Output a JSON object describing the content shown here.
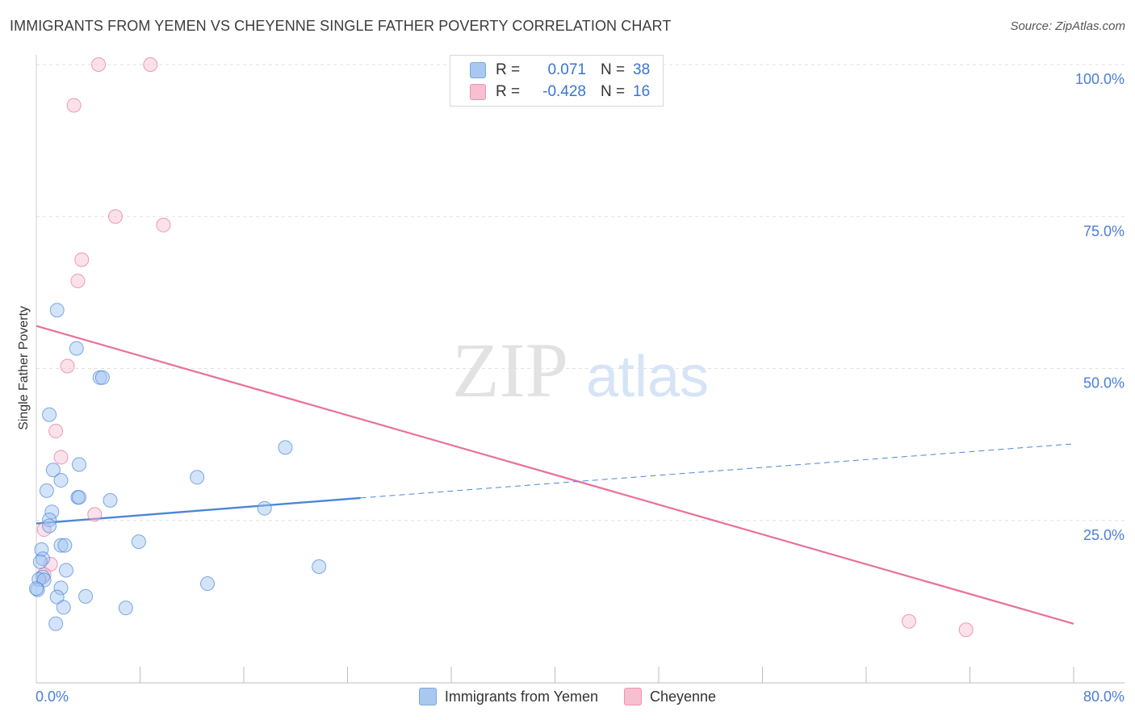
{
  "title": "IMMIGRANTS FROM YEMEN VS CHEYENNE SINGLE FATHER POVERTY CORRELATION CHART",
  "source": "Source: ZipAtlas.com",
  "watermark": {
    "zip": "ZIP",
    "atlas": "atlas"
  },
  "legend": {
    "rows": [
      {
        "r_label": "R =",
        "r_value": "0.071",
        "n_label": "N =",
        "n_value": "38",
        "color": "#a9c8ef",
        "border": "#7aa7e3"
      },
      {
        "r_label": "R =",
        "r_value": "-0.428",
        "n_label": "N =",
        "n_value": "16",
        "color": "#f7bfd0",
        "border": "#ee93b0"
      }
    ]
  },
  "bottom_legend": [
    {
      "label": "Immigrants from Yemen",
      "color": "#a9c8ef",
      "border": "#7aa7e3"
    },
    {
      "label": "Cheyenne",
      "color": "#f7bfd0",
      "border": "#ee93b0"
    }
  ],
  "chart_data": {
    "type": "scatter",
    "title": "IMMIGRANTS FROM YEMEN VS CHEYENNE SINGLE FATHER POVERTY CORRELATION CHART",
    "xlabel": "",
    "ylabel": "Single Father Poverty",
    "xlim": [
      0,
      80
    ],
    "ylim": [
      0,
      100
    ],
    "x_tick_labels": [
      "0.0%",
      "80.0%"
    ],
    "y_ticks": [
      25,
      50,
      75,
      100
    ],
    "y_tick_labels": [
      "25.0%",
      "50.0%",
      "75.0%",
      "100.0%"
    ],
    "grid": true,
    "series": [
      {
        "name": "Immigrants from Yemen",
        "color": "#4a86d8",
        "fill": "rgba(160,196,240,0.45)",
        "points": [
          [
            1.6,
            59.6
          ],
          [
            3.1,
            53.3
          ],
          [
            4.9,
            48.5
          ],
          [
            5.1,
            48.5
          ],
          [
            1.0,
            42.4
          ],
          [
            19.2,
            37.0
          ],
          [
            3.3,
            34.2
          ],
          [
            1.3,
            33.3
          ],
          [
            1.9,
            31.6
          ],
          [
            12.4,
            32.1
          ],
          [
            0.8,
            29.9
          ],
          [
            3.2,
            28.8
          ],
          [
            3.3,
            28.8
          ],
          [
            5.7,
            28.3
          ],
          [
            17.6,
            27.0
          ],
          [
            1.2,
            26.4
          ],
          [
            1.0,
            25.1
          ],
          [
            1.0,
            24.1
          ],
          [
            0.4,
            20.2
          ],
          [
            1.9,
            20.9
          ],
          [
            2.2,
            20.9
          ],
          [
            7.9,
            21.5
          ],
          [
            0.5,
            18.7
          ],
          [
            0.3,
            18.2
          ],
          [
            21.8,
            17.4
          ],
          [
            2.3,
            16.8
          ],
          [
            0.5,
            15.7
          ],
          [
            0.2,
            15.3
          ],
          [
            0.6,
            15.2
          ],
          [
            13.2,
            14.6
          ],
          [
            1.9,
            13.9
          ],
          [
            0.1,
            13.6
          ],
          [
            1.6,
            12.4
          ],
          [
            3.8,
            12.5
          ],
          [
            2.1,
            10.7
          ],
          [
            6.9,
            10.6
          ],
          [
            1.5,
            8.0
          ],
          [
            0.0,
            13.8
          ]
        ],
        "trend_solid": {
          "x": [
            0,
            25
          ],
          "y": [
            24.5,
            28.7
          ]
        },
        "trend_dashed": {
          "x": [
            25,
            80
          ],
          "y": [
            28.7,
            37.6
          ]
        }
      },
      {
        "name": "Cheyenne",
        "color": "#e8709c",
        "fill": "rgba(247,191,208,0.45)",
        "points": [
          [
            4.8,
            100.0
          ],
          [
            8.8,
            100.0
          ],
          [
            2.9,
            93.3
          ],
          [
            6.1,
            75.0
          ],
          [
            9.8,
            73.6
          ],
          [
            3.5,
            67.9
          ],
          [
            3.2,
            64.4
          ],
          [
            2.4,
            50.4
          ],
          [
            1.5,
            39.7
          ],
          [
            1.9,
            35.4
          ],
          [
            4.5,
            26.0
          ],
          [
            0.6,
            23.5
          ],
          [
            1.1,
            17.8
          ],
          [
            0.6,
            16.1
          ],
          [
            67.3,
            8.4
          ],
          [
            71.7,
            7.0
          ]
        ],
        "trend_solid": {
          "x": [
            0,
            80
          ],
          "y": [
            57.0,
            8.0
          ]
        }
      }
    ]
  }
}
